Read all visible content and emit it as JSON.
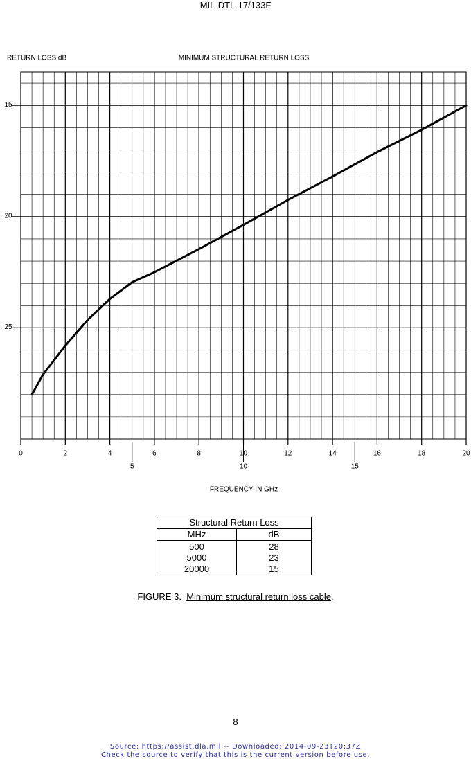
{
  "header": {
    "title": "MIL-DTL-17/133F"
  },
  "chart_data": {
    "type": "line",
    "title": "MINIMUM STRUCTURAL RETURN LOSS",
    "y_label": "RETURN LOSS dB",
    "x_label": "FREQUENCY IN GHz",
    "x": [
      0.5,
      1,
      2,
      3,
      4,
      5,
      6,
      8,
      10,
      12,
      14,
      16,
      18,
      20
    ],
    "series": [
      {
        "name": "Minimum structural return loss",
        "color": "#000000",
        "values": [
          28,
          27.1,
          25.8,
          24.65,
          23.7,
          22.95,
          22.5,
          21.46,
          20.37,
          19.25,
          18.2,
          17.1,
          16.1,
          15
        ]
      }
    ],
    "xlim": [
      0,
      20
    ],
    "xticks": [
      0,
      2,
      4,
      6,
      8,
      10,
      12,
      14,
      16,
      18,
      20
    ],
    "xticks2": [
      5,
      10,
      15
    ],
    "ylim": [
      13.5,
      30
    ],
    "y_inverted": true,
    "yticks": [
      15,
      20,
      25
    ],
    "grid": true
  },
  "table": {
    "title": "Structural Return Loss",
    "header": [
      "MHz",
      "dB"
    ],
    "rows": [
      [
        "500",
        "28"
      ],
      [
        "5000",
        "23"
      ],
      [
        "20000",
        "15"
      ]
    ]
  },
  "caption": {
    "label": "FIGURE 3.",
    "text": "Minimum structural return loss cable",
    "end": "."
  },
  "page_number": "8",
  "footer": [
    "Source: https://assist.dla.mil -- Downloaded: 2014-09-23T20:37Z",
    "Check the source to verify that this is the current version before use."
  ]
}
